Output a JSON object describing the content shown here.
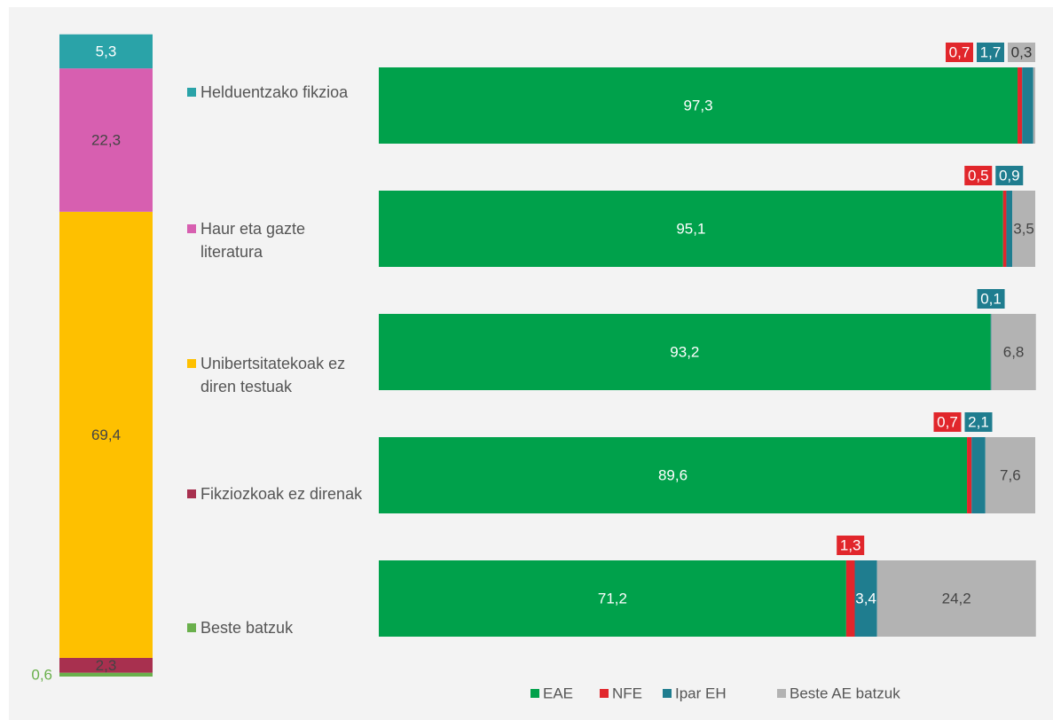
{
  "chart_data": [
    {
      "type": "stacked-column",
      "ylim": [
        0,
        100
      ],
      "series": [
        {
          "name": "Helduentzako fikzioa",
          "color": "#2aa3a8",
          "values": [
            5.3
          ],
          "value_labels": [
            "5,3"
          ]
        },
        {
          "name": "Haur eta gazte literatura",
          "color": "#d75fb0",
          "values": [
            22.3
          ],
          "value_labels": [
            "22,3"
          ]
        },
        {
          "name": "Unibertsitatekoak ez diren testuak",
          "color": "#fec000",
          "values": [
            69.4
          ],
          "value_labels": [
            "69,4"
          ]
        },
        {
          "name": "Fikziozkoak ez direnak",
          "color": "#a8304f",
          "values": [
            2.3
          ],
          "value_labels": [
            "2,3"
          ]
        },
        {
          "name": "Beste batzuk",
          "color": "#6ab04c",
          "values": [
            0.6
          ],
          "value_labels": [
            "0,6"
          ]
        }
      ]
    },
    {
      "type": "stacked-bar",
      "xlim": [
        0,
        100
      ],
      "categories": [
        null,
        null,
        null,
        null,
        null
      ],
      "series": [
        {
          "name": "EAE",
          "color": "#00a14b",
          "values": [
            97.3,
            95.1,
            93.2,
            89.6,
            71.2
          ],
          "value_labels": [
            "97,3",
            "95,1",
            "93,2",
            "89,6",
            "71,2"
          ]
        },
        {
          "name": "NFE",
          "color": "#e1262b",
          "values": [
            0.7,
            0.5,
            null,
            0.7,
            1.3
          ],
          "value_labels": [
            "0,7",
            "0,5",
            null,
            "0,7",
            "1,3"
          ]
        },
        {
          "name": "Ipar EH",
          "color": "#1f7d8f",
          "values": [
            1.7,
            0.9,
            0.1,
            2.1,
            3.4
          ],
          "value_labels": [
            "1,7",
            "0,9",
            "0,1",
            "2,1",
            "3,4"
          ]
        },
        {
          "name": "Beste AE batzuk",
          "color": "#b3b3b3",
          "values": [
            0.3,
            3.5,
            6.8,
            7.6,
            24.2
          ],
          "value_labels": [
            "0,3",
            "3,5",
            "6,8",
            "7,6",
            "24,2"
          ]
        }
      ]
    }
  ]
}
